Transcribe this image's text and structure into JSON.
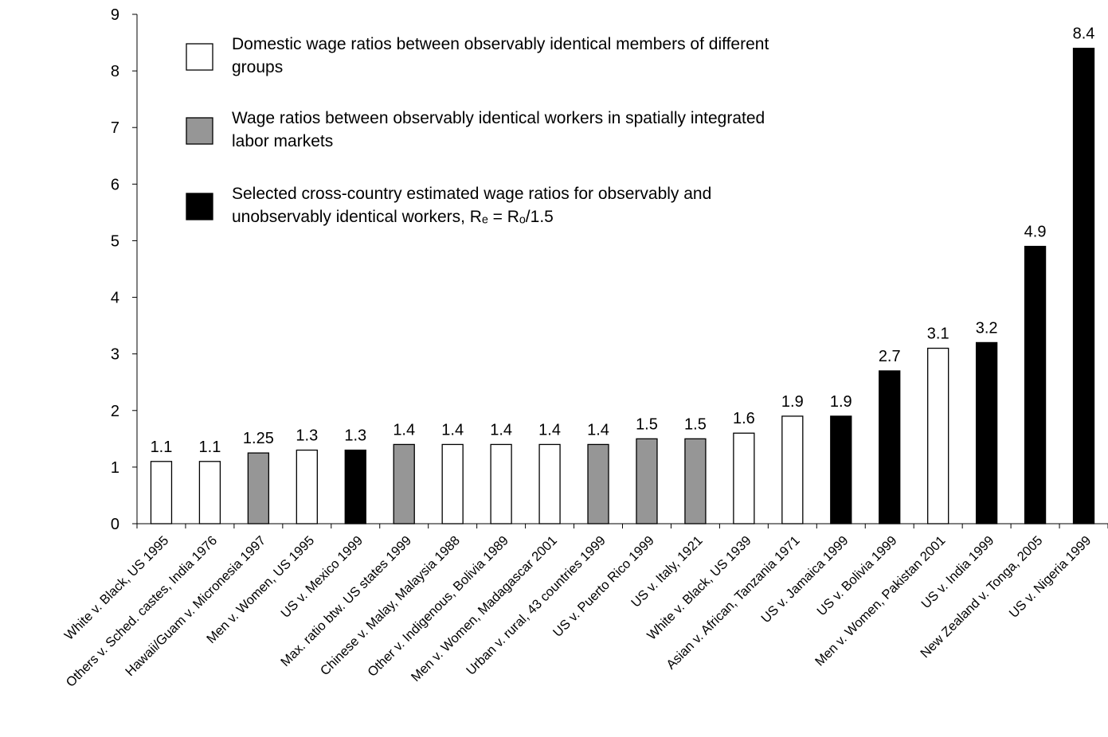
{
  "chart_data": {
    "type": "bar",
    "categories": [
      "White v. Black, US 1995",
      "Others v. Sched. castes, India 1976",
      "Hawaii/Guam v. Micronesia 1997",
      "Men v. Women, US 1995",
      "US v. Mexico 1999",
      "Max. ratio btw. US states 1999",
      "Chinese v. Malay, Malaysia 1988",
      "Other v. Indigenous, Bolivia 1989",
      "Men v. Women, Madagascar 2001",
      "Urban v. rural, 43 countries 1999",
      "US v. Puerto Rico 1999",
      "US v. Italy, 1921",
      "White v. Black, US 1939",
      "Asian v. African, Tanzania 1971",
      "US v. Jamaica 1999",
      "US v. Bolivia 1999",
      "Men v. Women, Pakistan 2001",
      "US v. India 1999",
      "New Zealand v. Tonga, 2005",
      "US v. Nigeria 1999"
    ],
    "series": [
      {
        "name": "Domestic wage ratios between observably identical members of different groups",
        "color": "#ffffff",
        "values": [
          1.1,
          1.1,
          null,
          1.3,
          null,
          null,
          1.4,
          1.4,
          1.4,
          null,
          null,
          null,
          1.6,
          1.9,
          null,
          null,
          3.1,
          null,
          null,
          null
        ]
      },
      {
        "name": "Wage ratios between observably identical workers in spatially integrated labor markets",
        "color": "#969696",
        "values": [
          null,
          null,
          1.25,
          null,
          null,
          1.4,
          null,
          null,
          null,
          1.4,
          1.5,
          1.5,
          null,
          null,
          null,
          null,
          null,
          null,
          null,
          null
        ]
      },
      {
        "name": "Selected cross-country estimated wage ratios for observably and unobservably identical workers, Rₑ = Rₒ/1.5",
        "color": "#000000",
        "values": [
          null,
          null,
          null,
          null,
          1.3,
          null,
          null,
          null,
          null,
          null,
          null,
          null,
          null,
          null,
          1.9,
          2.7,
          null,
          3.2,
          4.9,
          8.4
        ]
      }
    ],
    "ylim": [
      0,
      9
    ],
    "yticks": [
      0,
      1,
      2,
      3,
      4,
      5,
      6,
      7,
      8,
      9
    ],
    "grid": false,
    "legend": "top-left"
  }
}
